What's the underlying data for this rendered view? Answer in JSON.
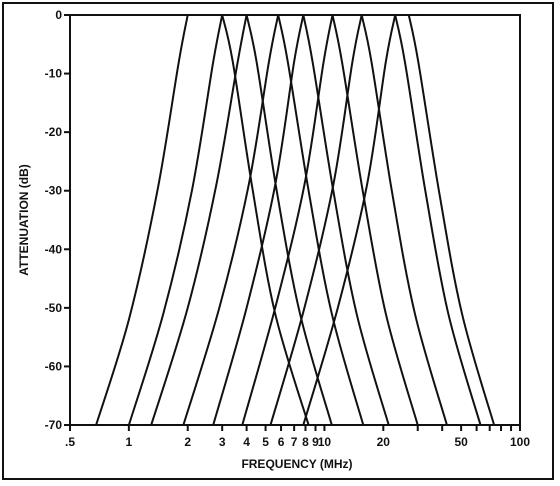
{
  "chart_data": {
    "type": "line",
    "xlabel": "FREQUENCY (MHz)",
    "ylabel": "ATTENUATION (dB)",
    "x_scale": "log",
    "xlim": [
      0.5,
      100
    ],
    "ylim": [
      -70,
      0
    ],
    "grid": false,
    "x_ticks": [
      {
        "value": 0.5,
        "label": ".5"
      },
      {
        "value": 1,
        "label": "1"
      },
      {
        "value": 2,
        "label": "2"
      },
      {
        "value": 3,
        "label": "3"
      },
      {
        "value": 4,
        "label": "4"
      },
      {
        "value": 5,
        "label": "5"
      },
      {
        "value": 6,
        "label": "6"
      },
      {
        "value": 7,
        "label": "7"
      },
      {
        "value": 8,
        "label": "8"
      },
      {
        "value": 9,
        "label": "9"
      },
      {
        "value": 10,
        "label": "10"
      },
      {
        "value": 20,
        "label": "20"
      },
      {
        "value": 50,
        "label": "50"
      },
      {
        "value": 100,
        "label": "100"
      }
    ],
    "x_minor_ticks": [
      30,
      40,
      60,
      70,
      80,
      90
    ],
    "y_ticks": [
      {
        "value": 0,
        "label": "0"
      },
      {
        "value": -10,
        "label": "-10"
      },
      {
        "value": -20,
        "label": "-20"
      },
      {
        "value": -30,
        "label": "-30"
      },
      {
        "value": -40,
        "label": "-40"
      },
      {
        "value": -50,
        "label": "-50"
      },
      {
        "value": -60,
        "label": "-60"
      },
      {
        "value": -70,
        "label": "-70"
      }
    ],
    "passband": {
      "from": 2,
      "to": 30,
      "level": 0
    },
    "lowpass_curves": [
      {
        "edge": 2.0,
        "x": [
          0.68,
          1.0,
          1.4,
          1.8,
          2.0
        ],
        "y": [
          -70,
          -52,
          -30,
          -8,
          0
        ]
      },
      {
        "edge": 3.0,
        "x": [
          1.0,
          1.5,
          2.1,
          2.7,
          3.0
        ],
        "y": [
          -70,
          -51,
          -30,
          -8,
          0
        ]
      },
      {
        "edge": 4.0,
        "x": [
          1.3,
          2.0,
          2.8,
          3.6,
          4.0
        ],
        "y": [
          -70,
          -50,
          -29,
          -8,
          0
        ]
      },
      {
        "edge": 5.8,
        "x": [
          1.9,
          2.9,
          4.1,
          5.2,
          5.8
        ],
        "y": [
          -70,
          -50,
          -29,
          -8,
          0
        ]
      },
      {
        "edge": 7.8,
        "x": [
          2.7,
          4.0,
          5.6,
          7.0,
          7.8
        ],
        "y": [
          -70,
          -50,
          -29,
          -8,
          0
        ]
      },
      {
        "edge": 11.0,
        "x": [
          3.8,
          5.6,
          7.9,
          9.9,
          11.0
        ],
        "y": [
          -70,
          -50,
          -29,
          -8,
          0
        ]
      },
      {
        "edge": 15.5,
        "x": [
          5.3,
          7.9,
          11.1,
          13.9,
          15.5
        ],
        "y": [
          -70,
          -50,
          -29,
          -8,
          0
        ]
      },
      {
        "edge": 23.0,
        "x": [
          7.8,
          11.7,
          16.5,
          20.6,
          23.0
        ],
        "y": [
          -70,
          -50,
          -29,
          -8,
          0
        ]
      }
    ],
    "highpass_curves": [
      {
        "edge": 3.0,
        "x": [
          3.0,
          3.4,
          4.3,
          5.6,
          8.3
        ],
        "y": [
          0,
          -8,
          -30,
          -51,
          -70
        ]
      },
      {
        "edge": 4.0,
        "x": [
          4.0,
          4.5,
          5.7,
          7.5,
          10.9
        ],
        "y": [
          0,
          -8,
          -30,
          -51,
          -70
        ]
      },
      {
        "edge": 5.8,
        "x": [
          5.8,
          6.5,
          8.3,
          10.9,
          15.8
        ],
        "y": [
          0,
          -8,
          -30,
          -51,
          -70
        ]
      },
      {
        "edge": 7.8,
        "x": [
          7.8,
          8.7,
          11.1,
          14.6,
          21.3
        ],
        "y": [
          0,
          -8,
          -30,
          -51,
          -70
        ]
      },
      {
        "edge": 11.0,
        "x": [
          11.0,
          12.3,
          15.7,
          20.6,
          30.0
        ],
        "y": [
          0,
          -8,
          -30,
          -51,
          -70
        ]
      },
      {
        "edge": 15.5,
        "x": [
          15.5,
          17.4,
          22.1,
          29.0,
          42.3
        ],
        "y": [
          0,
          -8,
          -30,
          -51,
          -70
        ]
      },
      {
        "edge": 23.0,
        "x": [
          23.0,
          25.8,
          32.8,
          43.0,
          62.8
        ],
        "y": [
          0,
          -8,
          -30,
          -51,
          -70
        ]
      },
      {
        "edge": 27.0,
        "x": [
          27.0,
          30.2,
          38.5,
          50.5,
          73.7
        ],
        "y": [
          0,
          -8,
          -30,
          -51,
          -70
        ]
      }
    ]
  }
}
